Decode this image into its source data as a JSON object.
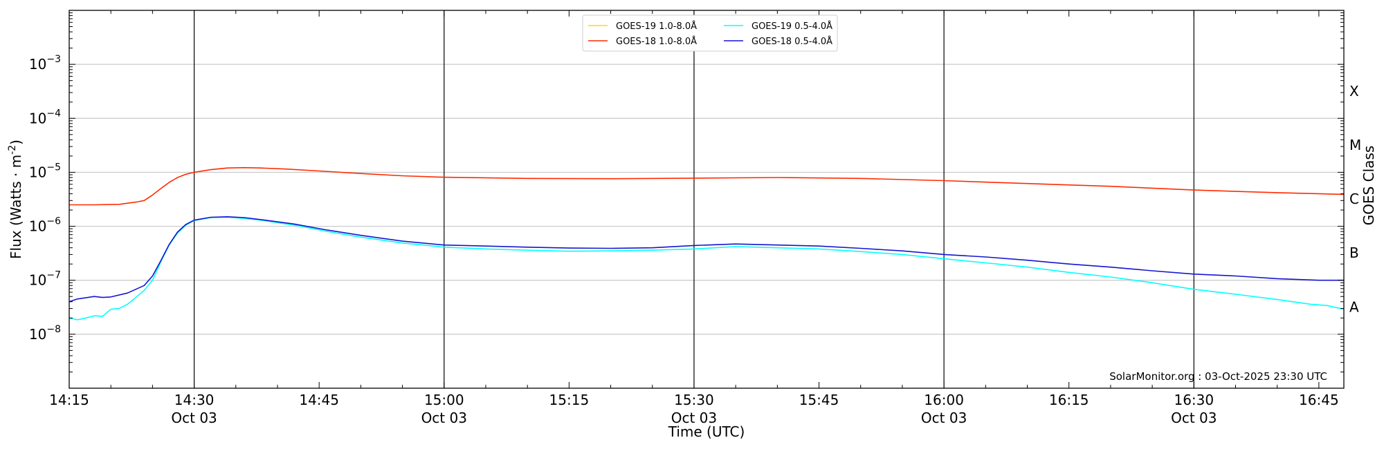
{
  "chart_data": {
    "type": "line",
    "xlabel": "Time (UTC)",
    "ylabel": "Flux (Watts · m",
    "ylabel_sup": "-2",
    "ylabel_close": ")",
    "right_label": "GOES Class",
    "credit": "SolarMonitor.org : 03-Oct-2025 23:30 UTC",
    "x_range_minutes": [
      "14:15",
      "16:48"
    ],
    "y_scale": "log",
    "ylim": [
      1e-09,
      0.01
    ],
    "grid": "horizontal at decades",
    "legend_placement": "top-center",
    "x_ticks": [
      {
        "time": "14:15",
        "label": "14:15",
        "date": ""
      },
      {
        "time": "14:30",
        "label": "14:30",
        "date": "Oct 03"
      },
      {
        "time": "14:45",
        "label": "14:45",
        "date": ""
      },
      {
        "time": "15:00",
        "label": "15:00",
        "date": "Oct 03"
      },
      {
        "time": "15:15",
        "label": "15:15",
        "date": ""
      },
      {
        "time": "15:30",
        "label": "15:30",
        "date": "Oct 03"
      },
      {
        "time": "15:45",
        "label": "15:45",
        "date": ""
      },
      {
        "time": "16:00",
        "label": "16:00",
        "date": "Oct 03"
      },
      {
        "time": "16:15",
        "label": "16:15",
        "date": ""
      },
      {
        "time": "16:30",
        "label": "16:30",
        "date": "Oct 03"
      },
      {
        "time": "16:45",
        "label": "16:45",
        "date": ""
      }
    ],
    "vertical_lines": [
      "14:30",
      "15:00",
      "15:30",
      "16:00",
      "16:30"
    ],
    "y_ticks": [
      {
        "exp": -8,
        "base": "10",
        "sup": "−8"
      },
      {
        "exp": -7,
        "base": "10",
        "sup": "−7"
      },
      {
        "exp": -6,
        "base": "10",
        "sup": "−6"
      },
      {
        "exp": -5,
        "base": "10",
        "sup": "−5"
      },
      {
        "exp": -4,
        "base": "10",
        "sup": "−4"
      },
      {
        "exp": -3,
        "base": "10",
        "sup": "−3"
      }
    ],
    "goes_classes": [
      {
        "label": "A",
        "value": 3.2e-08
      },
      {
        "label": "B",
        "value": 3.2e-07
      },
      {
        "label": "C",
        "value": 3.2e-06
      },
      {
        "label": "M",
        "value": 3.2e-05
      },
      {
        "label": "X",
        "value": 0.00032
      }
    ],
    "series": [
      {
        "name": "GOES-19 1.0-8.0Å",
        "color": "#ffd700",
        "points": []
      },
      {
        "name": "GOES-18 1.0-8.0Å",
        "color": "#ff2a00",
        "points": [
          [
            "14:15",
            2.5e-06
          ],
          [
            "14:18",
            2.5e-06
          ],
          [
            "14:21",
            2.55e-06
          ],
          [
            "14:23",
            2.8e-06
          ],
          [
            "14:24",
            3e-06
          ],
          [
            "14:25",
            3.8e-06
          ],
          [
            "14:26",
            5e-06
          ],
          [
            "14:27",
            6.5e-06
          ],
          [
            "14:28",
            8e-06
          ],
          [
            "14:29",
            9.2e-06
          ],
          [
            "14:30",
            1e-05
          ],
          [
            "14:32",
            1.12e-05
          ],
          [
            "14:34",
            1.2e-05
          ],
          [
            "14:36",
            1.22e-05
          ],
          [
            "14:38",
            1.2e-05
          ],
          [
            "14:41",
            1.15e-05
          ],
          [
            "14:45",
            1.06e-05
          ],
          [
            "14:50",
            9.5e-06
          ],
          [
            "14:55",
            8.6e-06
          ],
          [
            "15:00",
            8.1e-06
          ],
          [
            "15:10",
            7.7e-06
          ],
          [
            "15:20",
            7.6e-06
          ],
          [
            "15:30",
            7.8e-06
          ],
          [
            "15:40",
            8e-06
          ],
          [
            "15:50",
            7.7e-06
          ],
          [
            "16:00",
            7e-06
          ],
          [
            "16:10",
            6.2e-06
          ],
          [
            "16:20",
            5.5e-06
          ],
          [
            "16:30",
            4.7e-06
          ],
          [
            "16:40",
            4.2e-06
          ],
          [
            "16:48",
            3.9e-06
          ]
        ]
      },
      {
        "name": "GOES-19 0.5-4.0Å",
        "color": "#00ffff",
        "points": [
          [
            "14:15",
            2e-08
          ],
          [
            "14:16",
            1.85e-08
          ],
          [
            "14:17",
            2e-08
          ],
          [
            "14:18",
            2.2e-08
          ],
          [
            "14:19",
            2.15e-08
          ],
          [
            "14:20",
            2.9e-08
          ],
          [
            "14:21",
            3e-08
          ],
          [
            "14:22",
            3.6e-08
          ],
          [
            "14:23",
            4.8e-08
          ],
          [
            "14:24",
            6.5e-08
          ],
          [
            "14:25",
            1e-07
          ],
          [
            "14:26",
            2.2e-07
          ],
          [
            "14:27",
            4.5e-07
          ],
          [
            "14:28",
            7.5e-07
          ],
          [
            "14:29",
            1.05e-06
          ],
          [
            "14:30",
            1.28e-06
          ],
          [
            "14:32",
            1.45e-06
          ],
          [
            "14:34",
            1.48e-06
          ],
          [
            "14:36",
            1.4e-06
          ],
          [
            "14:38",
            1.3e-06
          ],
          [
            "14:42",
            1.05e-06
          ],
          [
            "14:46",
            8e-07
          ],
          [
            "14:50",
            6.3e-07
          ],
          [
            "14:55",
            4.9e-07
          ],
          [
            "15:00",
            4.1e-07
          ],
          [
            "15:05",
            3.8e-07
          ],
          [
            "15:10",
            3.6e-07
          ],
          [
            "15:15",
            3.45e-07
          ],
          [
            "15:20",
            3.5e-07
          ],
          [
            "15:25",
            3.6e-07
          ],
          [
            "15:30",
            3.8e-07
          ],
          [
            "15:35",
            4.2e-07
          ],
          [
            "15:40",
            4e-07
          ],
          [
            "15:45",
            3.8e-07
          ],
          [
            "15:50",
            3.4e-07
          ],
          [
            "15:55",
            3e-07
          ],
          [
            "16:00",
            2.5e-07
          ],
          [
            "16:05",
            2.1e-07
          ],
          [
            "16:10",
            1.75e-07
          ],
          [
            "16:15",
            1.4e-07
          ],
          [
            "16:20",
            1.15e-07
          ],
          [
            "16:25",
            9e-08
          ],
          [
            "16:30",
            6.8e-08
          ],
          [
            "16:35",
            5.5e-08
          ],
          [
            "16:40",
            4.4e-08
          ],
          [
            "16:44",
            3.6e-08
          ],
          [
            "16:46",
            3.4e-08
          ],
          [
            "16:48",
            2.9e-08
          ]
        ]
      },
      {
        "name": "GOES-18 0.5-4.0Å",
        "color": "#1414d2",
        "points": [
          [
            "14:15",
            4e-08
          ],
          [
            "14:16",
            4.5e-08
          ],
          [
            "14:18",
            5e-08
          ],
          [
            "14:19",
            4.8e-08
          ],
          [
            "14:20",
            4.9e-08
          ],
          [
            "14:22",
            5.8e-08
          ],
          [
            "14:24",
            8e-08
          ],
          [
            "14:25",
            1.2e-07
          ],
          [
            "14:26",
            2.3e-07
          ],
          [
            "14:27",
            4.6e-07
          ],
          [
            "14:28",
            7.8e-07
          ],
          [
            "14:29",
            1.08e-06
          ],
          [
            "14:30",
            1.3e-06
          ],
          [
            "14:32",
            1.47e-06
          ],
          [
            "14:34",
            1.5e-06
          ],
          [
            "14:36",
            1.45e-06
          ],
          [
            "14:38",
            1.33e-06
          ],
          [
            "14:42",
            1.1e-06
          ],
          [
            "14:46",
            8.5e-07
          ],
          [
            "14:50",
            6.8e-07
          ],
          [
            "14:55",
            5.3e-07
          ],
          [
            "15:00",
            4.5e-07
          ],
          [
            "15:05",
            4.3e-07
          ],
          [
            "15:10",
            4.1e-07
          ],
          [
            "15:15",
            3.95e-07
          ],
          [
            "15:20",
            3.9e-07
          ],
          [
            "15:25",
            4e-07
          ],
          [
            "15:30",
            4.4e-07
          ],
          [
            "15:35",
            4.7e-07
          ],
          [
            "15:40",
            4.5e-07
          ],
          [
            "15:45",
            4.3e-07
          ],
          [
            "15:50",
            3.9e-07
          ],
          [
            "15:55",
            3.5e-07
          ],
          [
            "16:00",
            3e-07
          ],
          [
            "16:05",
            2.7e-07
          ],
          [
            "16:10",
            2.35e-07
          ],
          [
            "16:15",
            2e-07
          ],
          [
            "16:20",
            1.75e-07
          ],
          [
            "16:25",
            1.5e-07
          ],
          [
            "16:30",
            1.3e-07
          ],
          [
            "16:35",
            1.2e-07
          ],
          [
            "16:40",
            1.07e-07
          ],
          [
            "16:45",
            1e-07
          ],
          [
            "16:48",
            1e-07
          ]
        ]
      }
    ]
  }
}
